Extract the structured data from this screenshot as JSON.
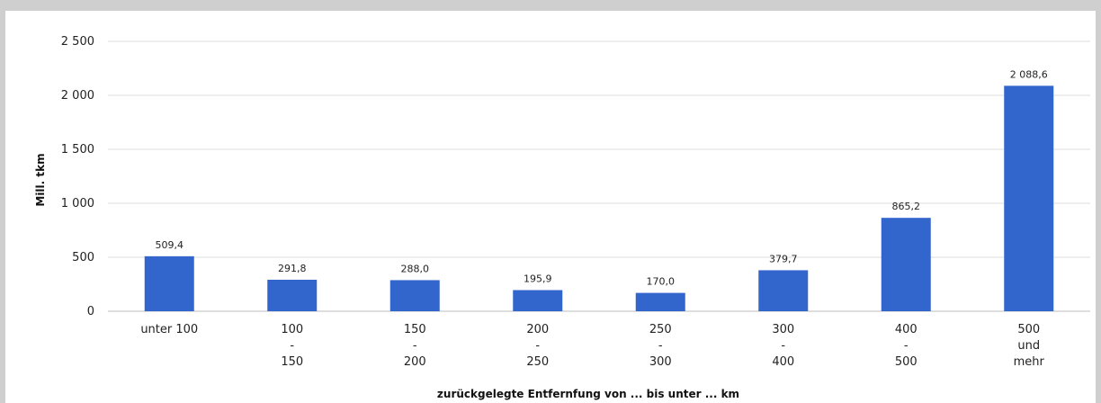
{
  "chart_data": {
    "type": "bar",
    "categories": [
      [
        "unter 100"
      ],
      [
        "100",
        "-",
        "150"
      ],
      [
        "150",
        "-",
        "200"
      ],
      [
        "200",
        "-",
        "250"
      ],
      [
        "250",
        "-",
        "300"
      ],
      [
        "300",
        "-",
        "400"
      ],
      [
        "400",
        "-",
        "500"
      ],
      [
        "500",
        "und",
        "mehr"
      ]
    ],
    "values": [
      509.4,
      291.8,
      288.0,
      195.9,
      170.0,
      379.7,
      865.2,
      2088.6
    ],
    "data_labels": [
      "509,4",
      "291,8",
      "288,0",
      "195,9",
      "170,0",
      "379,7",
      "865,2",
      "2 088,6"
    ],
    "ylabel": "Mill. tkm",
    "xlabel": "zurückgelegte Entfernfung von ... bis unter  ... km",
    "ylim": [
      0,
      2500
    ],
    "yticks": [
      0,
      500,
      1000,
      1500,
      2000,
      2500
    ],
    "ytick_labels": [
      "0",
      "500",
      "1 000",
      "1 500",
      "2 000",
      "2 500"
    ],
    "grid": "horizontal",
    "legend": "none",
    "bar_color": "#3366cc"
  }
}
